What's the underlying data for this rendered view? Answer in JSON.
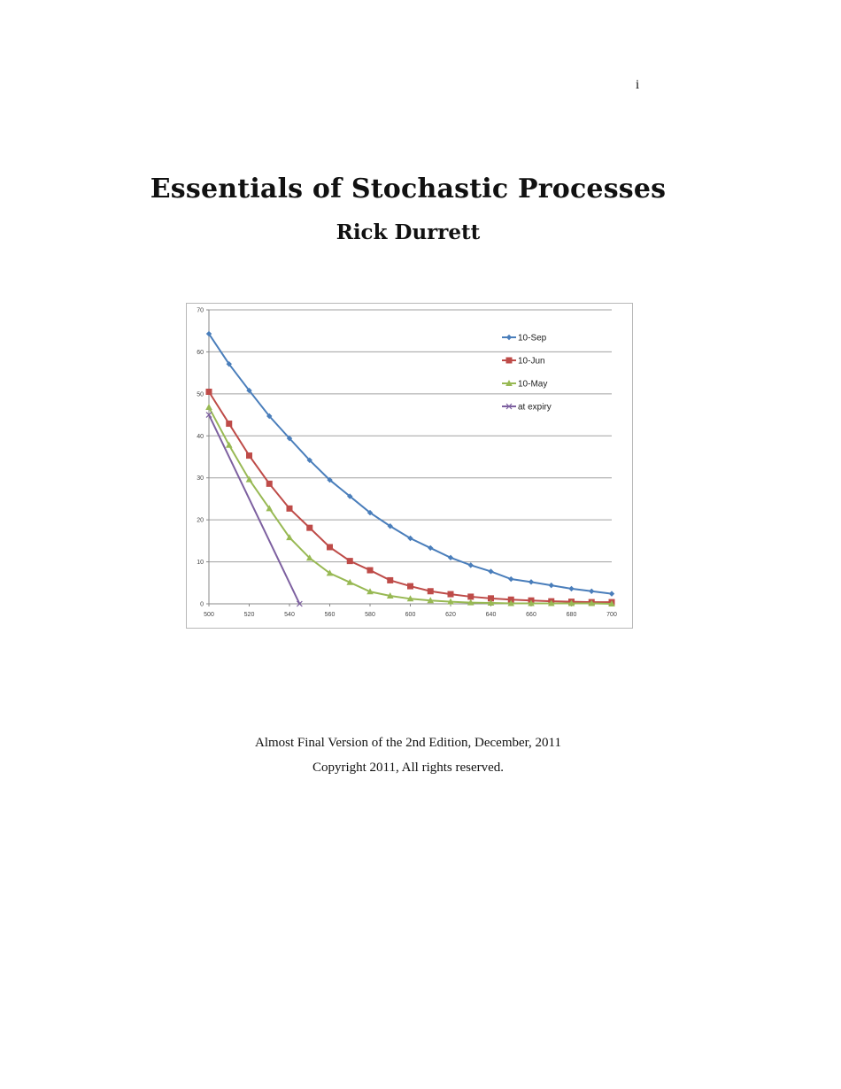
{
  "page": {
    "number": "i",
    "title": "Essentials of Stochastic Processes",
    "author": "Rick Durrett",
    "edition_note": "Almost Final Version of the 2nd Edition, December, 2011",
    "copyright": "Copyright 2011, All rights reserved."
  },
  "chart_data": {
    "type": "line",
    "title": "",
    "xlabel": "",
    "ylabel": "",
    "xlim": [
      500,
      700
    ],
    "ylim": [
      0,
      70
    ],
    "x_ticks": [
      500,
      520,
      540,
      560,
      580,
      600,
      620,
      640,
      660,
      680,
      700
    ],
    "y_ticks": [
      0,
      10,
      20,
      30,
      40,
      50,
      60,
      70
    ],
    "grid": "horizontal",
    "legend_position": "upper right (inside)",
    "x": [
      500,
      510,
      520,
      530,
      540,
      550,
      560,
      570,
      580,
      590,
      600,
      610,
      620,
      630,
      640,
      650,
      660,
      670,
      680,
      690,
      700
    ],
    "series": [
      {
        "name": "10-Sep",
        "color": "#4a7ebb",
        "marker": "diamond",
        "values": [
          64.3,
          57.1,
          50.8,
          44.7,
          39.4,
          34.2,
          29.5,
          25.6,
          21.7,
          18.5,
          15.6,
          13.3,
          11.0,
          9.2,
          7.7,
          5.9,
          5.2,
          4.4,
          3.6,
          3.0,
          2.4
        ]
      },
      {
        "name": "10-Jun",
        "color": "#be4b48",
        "marker": "square",
        "values": [
          50.5,
          42.9,
          35.3,
          28.6,
          22.7,
          18.1,
          13.5,
          10.2,
          8.0,
          5.6,
          4.2,
          3.0,
          2.3,
          1.7,
          1.3,
          1.0,
          0.8,
          0.6,
          0.5,
          0.4,
          0.4
        ]
      },
      {
        "name": "10-May",
        "color": "#98b954",
        "marker": "triangle",
        "values": [
          46.8,
          37.8,
          29.6,
          22.7,
          15.8,
          10.9,
          7.3,
          5.1,
          2.9,
          1.9,
          1.2,
          0.8,
          0.5,
          0.3,
          0.2,
          0.1,
          0.1,
          0.1,
          0.1,
          0.1,
          0.0
        ]
      },
      {
        "name": "at expiry",
        "color": "#7d60a0",
        "marker": "x",
        "points": [
          [
            500,
            45
          ],
          [
            545,
            0
          ]
        ]
      }
    ]
  }
}
